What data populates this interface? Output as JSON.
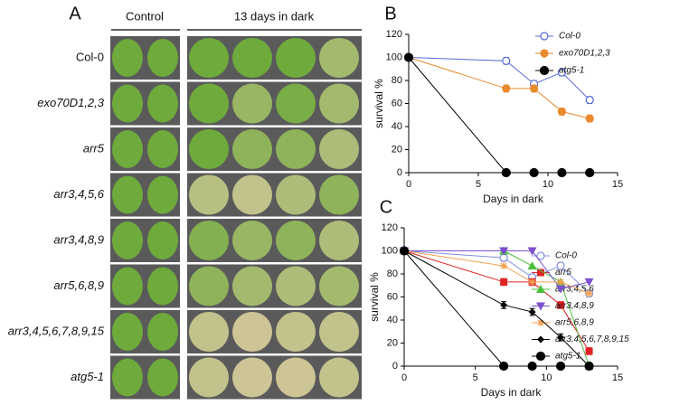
{
  "panel_a": {
    "label": "A",
    "columns": [
      "Control",
      "13 days in dark"
    ],
    "rows": [
      "Col-0",
      "exo70D1,2,3",
      "arr5",
      "arr3,4,5,6",
      "arr3,4,8,9",
      "arr5,6,8,9",
      "arr3,4,5,6,7,8,9,15",
      "atg5-1"
    ]
  },
  "chart_data": [
    {
      "type": "line",
      "panel": "B",
      "x_label": "Days in dark",
      "y_label": "survival %",
      "x": [
        0,
        7,
        9,
        11,
        13
      ],
      "xlim": [
        0,
        15
      ],
      "xticks": [
        0,
        5,
        10,
        15
      ],
      "ylim": [
        0,
        120
      ],
      "yticks": [
        0,
        20,
        40,
        60,
        80,
        100,
        120
      ],
      "series": [
        {
          "name": "Col-0",
          "color": "#5468d4",
          "marker": "open-circle",
          "values": [
            100,
            97,
            77,
            87,
            63
          ],
          "errors": [
            0,
            3,
            3,
            3,
            3
          ]
        },
        {
          "name": "exo70D1,2,3",
          "color": "#e88a2e",
          "marker": "circle",
          "values": [
            100,
            73,
            73,
            53,
            47
          ],
          "errors": [
            0,
            3,
            3,
            3,
            3
          ]
        },
        {
          "name": "atg5-1",
          "color": "#000000",
          "marker": "circle",
          "values": [
            100,
            0,
            0,
            0,
            0
          ]
        }
      ]
    },
    {
      "type": "line",
      "panel": "C",
      "x_label": "Days in dark",
      "y_label": "survival %",
      "x": [
        0,
        7,
        9,
        11,
        13
      ],
      "xlim": [
        0,
        15
      ],
      "xticks": [
        0,
        5,
        10,
        15
      ],
      "ylim": [
        0,
        120
      ],
      "yticks": [
        0,
        20,
        40,
        60,
        80,
        100,
        120
      ],
      "series": [
        {
          "name": "Col-0",
          "color": "#7f90dd",
          "marker": "open-circle",
          "values": [
            100,
            94,
            77,
            87,
            63
          ],
          "errors": [
            0,
            3,
            3,
            3,
            3
          ]
        },
        {
          "name": "arr5",
          "color": "#e02424",
          "marker": "square",
          "values": [
            100,
            73,
            73,
            53,
            13
          ],
          "errors": [
            0,
            3,
            3,
            3,
            3
          ]
        },
        {
          "name": "arr3,4,5,6",
          "color": "#4cbf3a",
          "marker": "triangle",
          "values": [
            100,
            100,
            87,
            73,
            0
          ]
        },
        {
          "name": "arr3,4,8,9",
          "color": "#7b4fd0",
          "marker": "triangle-down",
          "values": [
            100,
            100,
            100,
            67,
            73
          ]
        },
        {
          "name": "arr5,6,8,9",
          "color": "#f0a050",
          "marker": "star",
          "values": [
            100,
            87,
            73,
            73,
            63
          ]
        },
        {
          "name": "arr3,4,5,6,7,8,9,15",
          "color": "#000000",
          "marker": "diamond",
          "values": [
            100,
            53,
            47,
            25,
            0
          ],
          "errors": [
            0,
            3,
            3,
            3,
            3
          ]
        },
        {
          "name": "atg5-1",
          "color": "#000000",
          "marker": "circle",
          "values": [
            100,
            0,
            0,
            0,
            0
          ]
        }
      ]
    }
  ]
}
